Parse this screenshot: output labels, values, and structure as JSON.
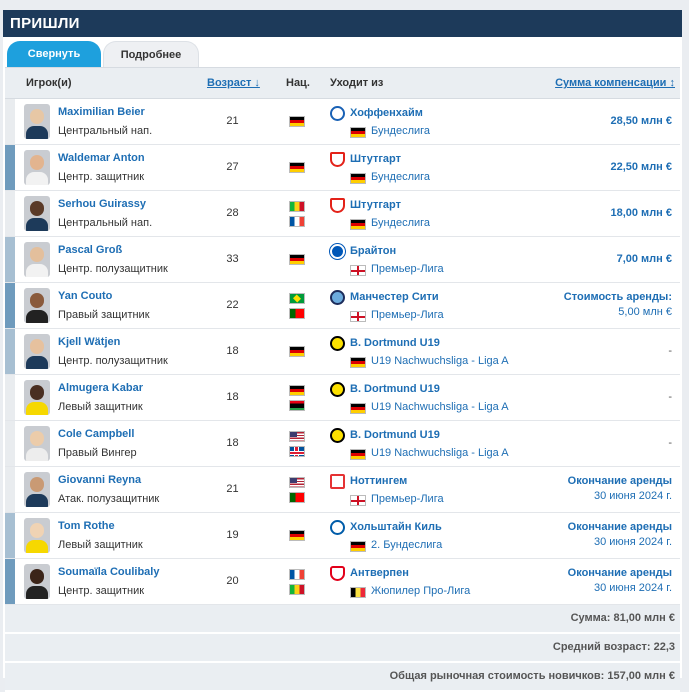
{
  "header": {
    "title": "ПРИШЛИ"
  },
  "tabs": {
    "collapse": "Свернуть",
    "details": "Подробнее"
  },
  "columns": {
    "player": "Игрок(и)",
    "age": "Возраст ↓",
    "nat": "Нац.",
    "from": "Уходит из",
    "fee": "Сумма компенсации ↕"
  },
  "colors": {
    "header_bg": "#1d3a5a",
    "tab_active": "#1ea0dd",
    "link": "#1e6eb4"
  },
  "rows": [
    {
      "name": "Maximilian Beier",
      "position": "Центральный нап.",
      "age": "21",
      "flags": [
        "de"
      ],
      "club": "Хоффенхайм",
      "club_icon": "hoffenheim-crest",
      "league_flag": "de",
      "league": "Бундеслига",
      "fee1": "28,50 млн €",
      "fee2": "",
      "stripe": "#e9ecef"
    },
    {
      "name": "Waldemar Anton",
      "position": "Центр. защитник",
      "age": "27",
      "flags": [
        "de"
      ],
      "club": "Штутгарт",
      "club_icon": "stuttgart-crest",
      "league_flag": "de",
      "league": "Бундеслига",
      "fee1": "22,50 млн €",
      "fee2": "",
      "stripe": "#6f9bbd"
    },
    {
      "name": "Serhou Guirassy",
      "position": "Центральный нап.",
      "age": "28",
      "flags": [
        "ml",
        "fr"
      ],
      "club": "Штутгарт",
      "club_icon": "stuttgart-crest",
      "league_flag": "de",
      "league": "Бундеслига",
      "fee1": "18,00 млн €",
      "fee2": "",
      "stripe": "#e9ecef"
    },
    {
      "name": "Pascal Groß",
      "position": "Центр. полузащитник",
      "age": "33",
      "flags": [
        "de"
      ],
      "club": "Брайтон",
      "club_icon": "brighton-crest",
      "league_flag": "en",
      "league": "Премьер-Лига",
      "fee1": "7,00 млн €",
      "fee2": "",
      "stripe": "#a7bfd2"
    },
    {
      "name": "Yan Couto",
      "position": "Правый защитник",
      "age": "22",
      "flags": [
        "br",
        "pt"
      ],
      "club": "Манчестер Сити",
      "club_icon": "mancity-crest",
      "league_flag": "en",
      "league": "Премьер-Лига",
      "fee1": "Стоимость аренды:",
      "fee2": "5,00 млн €",
      "stripe": "#6f9bbd"
    },
    {
      "name": "Kjell Wätjen",
      "position": "Центр. полузащитник",
      "age": "18",
      "flags": [
        "de"
      ],
      "club": "B. Dortmund U19",
      "club_icon": "dortmund-crest",
      "league_flag": "de",
      "league": "U19 Nachwuchsliga - Liga A",
      "fee1": "-",
      "fee2": "",
      "stripe": "#a7bfd2"
    },
    {
      "name": "Almugera Kabar",
      "position": "Левый защитник",
      "age": "18",
      "flags": [
        "de",
        "ly"
      ],
      "club": "B. Dortmund U19",
      "club_icon": "dortmund-crest",
      "league_flag": "de",
      "league": "U19 Nachwuchsliga - Liga A",
      "fee1": "-",
      "fee2": "",
      "stripe": "#e9ecef"
    },
    {
      "name": "Cole Campbell",
      "position": "Правый Вингер",
      "age": "18",
      "flags": [
        "us",
        "is"
      ],
      "club": "B. Dortmund U19",
      "club_icon": "dortmund-crest",
      "league_flag": "de",
      "league": "U19 Nachwuchsliga - Liga A",
      "fee1": "-",
      "fee2": "",
      "stripe": "#e9ecef"
    },
    {
      "name": "Giovanni Reyna",
      "position": "Атак. полузащитник",
      "age": "21",
      "flags": [
        "us",
        "pt"
      ],
      "club": "Ноттингем",
      "club_icon": "forest-crest",
      "league_flag": "en",
      "league": "Премьер-Лига",
      "fee1": "Окончание аренды",
      "fee2": "30 июня 2024 г.",
      "stripe": "#e9ecef"
    },
    {
      "name": "Tom Rothe",
      "position": "Левый защитник",
      "age": "19",
      "flags": [
        "de"
      ],
      "club": "Хольштайн Киль",
      "club_icon": "kiel-crest",
      "league_flag": "de",
      "league": "2. Бундеслига",
      "fee1": "Окончание аренды",
      "fee2": "30 июня 2024 г.",
      "stripe": "#a7bfd2"
    },
    {
      "name": "Soumaïla Coulibaly",
      "position": "Центр. защитник",
      "age": "20",
      "flags": [
        "fr",
        "ml"
      ],
      "club": "Антверпен",
      "club_icon": "antwerp-crest",
      "league_flag": "be",
      "league": "Жюпилер Про-Лига",
      "fee1": "Окончание аренды",
      "fee2": "30 июня 2024 г.",
      "stripe": "#6f9bbd"
    }
  ],
  "summary": {
    "total": "Сумма: 81,00 млн €",
    "avg_age": "Средний возраст: 22,3",
    "market_value": "Общая рыночная стоимость новичков: 157,00 млн €"
  }
}
